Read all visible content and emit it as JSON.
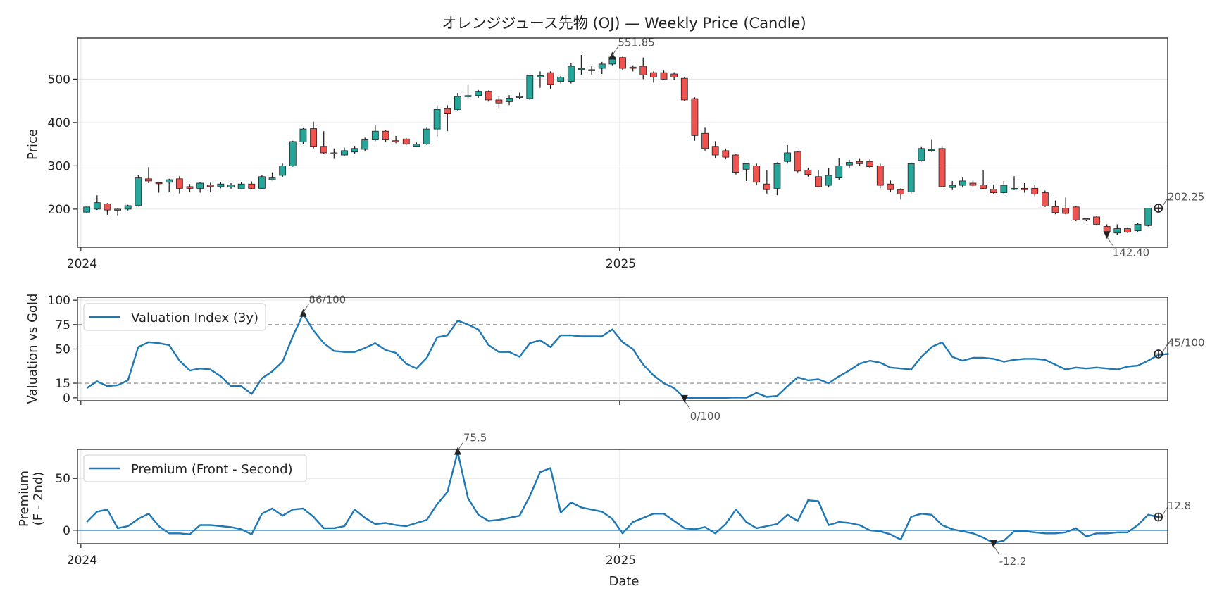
{
  "title": "オレンジジュース先物 (OJ) — Weekly Price (Candle)",
  "colors": {
    "up": "#26a69a",
    "down": "#ef5350",
    "line": "#1f77b4",
    "marker": "#222222",
    "grid": "#e6e6e6",
    "ref": "#999999"
  },
  "chart_data": [
    {
      "type": "candlestick",
      "ylabel": "Price",
      "ylim": [
        112,
        595
      ],
      "x_start": "2024-01-05",
      "x_step_days": 7,
      "x_ticks": [
        {
          "date": "2024-01-01",
          "label": "2024"
        },
        {
          "date": "2025-01-01",
          "label": "2025"
        }
      ],
      "y_ticks": [
        200,
        300,
        400,
        500
      ],
      "grid": true,
      "ohlc": [
        [
          193,
          205,
          190,
          208
        ],
        [
          200,
          215,
          198,
          232
        ],
        [
          212,
          198,
          187,
          214
        ],
        [
          198,
          200,
          186,
          201
        ],
        [
          200,
          208,
          197,
          210
        ],
        [
          208,
          272,
          206,
          278
        ],
        [
          270,
          265,
          260,
          297
        ],
        [
          261,
          259,
          238,
          262
        ],
        [
          262,
          268,
          239,
          270
        ],
        [
          270,
          248,
          236,
          276
        ],
        [
          252,
          248,
          240,
          258
        ],
        [
          248,
          260,
          238,
          262
        ],
        [
          256,
          252,
          239,
          261
        ],
        [
          252,
          258,
          248,
          262
        ],
        [
          251,
          256,
          246,
          260
        ],
        [
          247,
          258,
          246,
          262
        ],
        [
          258,
          248,
          246,
          264
        ],
        [
          248,
          275,
          246,
          278
        ],
        [
          268,
          272,
          266,
          285
        ],
        [
          278,
          300,
          274,
          305
        ],
        [
          300,
          356,
          298,
          358
        ],
        [
          355,
          385,
          350,
          387
        ],
        [
          386,
          345,
          340,
          402
        ],
        [
          345,
          330,
          328,
          380
        ],
        [
          328,
          330,
          316,
          340
        ],
        [
          325,
          335,
          322,
          342
        ],
        [
          332,
          340,
          328,
          346
        ],
        [
          338,
          360,
          335,
          365
        ],
        [
          360,
          380,
          357,
          394
        ],
        [
          380,
          360,
          355,
          383
        ],
        [
          358,
          356,
          352,
          369
        ],
        [
          362,
          350,
          347,
          364
        ],
        [
          345,
          350,
          344,
          354
        ],
        [
          350,
          385,
          348,
          388
        ],
        [
          385,
          430,
          368,
          440
        ],
        [
          432,
          420,
          380,
          440
        ],
        [
          430,
          460,
          428,
          468
        ],
        [
          460,
          462,
          456,
          488
        ],
        [
          462,
          472,
          457,
          475
        ],
        [
          472,
          452,
          448,
          474
        ],
        [
          452,
          445,
          434,
          460
        ],
        [
          448,
          456,
          440,
          463
        ],
        [
          458,
          460,
          455,
          469
        ],
        [
          455,
          508,
          452,
          510
        ],
        [
          505,
          508,
          480,
          518
        ],
        [
          515,
          488,
          478,
          518
        ],
        [
          495,
          505,
          490,
          508
        ],
        [
          495,
          530,
          490,
          538
        ],
        [
          522,
          525,
          510,
          556
        ],
        [
          522,
          520,
          510,
          530
        ],
        [
          525,
          535,
          512,
          540
        ],
        [
          535,
          551,
          532,
          558
        ],
        [
          550,
          525,
          520,
          552
        ],
        [
          528,
          525,
          518,
          532
        ],
        [
          530,
          510,
          500,
          550
        ],
        [
          515,
          505,
          492,
          518
        ],
        [
          515,
          500,
          498,
          520
        ],
        [
          512,
          505,
          498,
          516
        ],
        [
          502,
          452,
          450,
          505
        ],
        [
          455,
          370,
          358,
          458
        ],
        [
          375,
          340,
          335,
          388
        ],
        [
          345,
          325,
          318,
          357
        ],
        [
          335,
          320,
          315,
          340
        ],
        [
          325,
          285,
          280,
          328
        ],
        [
          292,
          305,
          265,
          307
        ],
        [
          300,
          262,
          256,
          305
        ],
        [
          258,
          245,
          236,
          290
        ],
        [
          248,
          305,
          232,
          308
        ],
        [
          310,
          330,
          305,
          348
        ],
        [
          332,
          288,
          285,
          335
        ],
        [
          290,
          280,
          275,
          296
        ],
        [
          275,
          252,
          250,
          290
        ],
        [
          255,
          278,
          250,
          295
        ],
        [
          272,
          300,
          268,
          318
        ],
        [
          302,
          308,
          295,
          314
        ],
        [
          310,
          305,
          300,
          316
        ],
        [
          310,
          298,
          295,
          315
        ],
        [
          300,
          255,
          248,
          305
        ],
        [
          258,
          245,
          240,
          266
        ],
        [
          245,
          235,
          222,
          248
        ],
        [
          240,
          305,
          236,
          308
        ],
        [
          312,
          340,
          310,
          345
        ],
        [
          336,
          338,
          332,
          360
        ],
        [
          340,
          252,
          250,
          345
        ],
        [
          250,
          255,
          244,
          265
        ],
        [
          255,
          265,
          250,
          273
        ],
        [
          260,
          255,
          250,
          266
        ],
        [
          256,
          248,
          246,
          290
        ],
        [
          246,
          238,
          236,
          257
        ],
        [
          238,
          255,
          234,
          265
        ],
        [
          246,
          248,
          244,
          276
        ],
        [
          248,
          245,
          238,
          260
        ],
        [
          248,
          235,
          230,
          256
        ],
        [
          238,
          207,
          205,
          243
        ],
        [
          206,
          192,
          188,
          220
        ],
        [
          202,
          190,
          188,
          227
        ],
        [
          205,
          175,
          172,
          207
        ],
        [
          178,
          175,
          172,
          178
        ],
        [
          182,
          165,
          162,
          185
        ],
        [
          160,
          147,
          143,
          165
        ],
        [
          145,
          155,
          140,
          165
        ],
        [
          155,
          147,
          145,
          158
        ],
        [
          150,
          165,
          148,
          168
        ],
        [
          162,
          202,
          160,
          203
        ],
        [
          203,
          202,
          195,
          206
        ]
      ],
      "annotations": [
        {
          "label": "551.85",
          "kind": "max",
          "index": 51,
          "value": 551.85
        },
        {
          "label": "142.40",
          "kind": "min",
          "index": 99,
          "value": 142.4
        },
        {
          "label": "202.25",
          "kind": "last",
          "index": 104,
          "value": 202.25
        }
      ]
    },
    {
      "type": "line",
      "ylabel": "Valuation vs Gold",
      "ylim": [
        -3,
        103
      ],
      "y_ticks": [
        0,
        15,
        50,
        75,
        100
      ],
      "reference_lines": [
        15,
        75
      ],
      "series": [
        {
          "name": "Valuation Index (3y)",
          "values": [
            10,
            17,
            12,
            13,
            18,
            52,
            57,
            56,
            54,
            38,
            28,
            30,
            29,
            22,
            12,
            12,
            4,
            20,
            27,
            37,
            63,
            86,
            69,
            56,
            48,
            47,
            47,
            51,
            56,
            49,
            46,
            35,
            30,
            41,
            62,
            64,
            79,
            75,
            70,
            54,
            47,
            47,
            42,
            56,
            59,
            52,
            64,
            64,
            63,
            63,
            63,
            70,
            57,
            50,
            34,
            23,
            15,
            10,
            0,
            0,
            0,
            0,
            0,
            0.4,
            0.2,
            5,
            1,
            2,
            12,
            21,
            18,
            19,
            15,
            22,
            28,
            35,
            38,
            36,
            31,
            30,
            29,
            42,
            52,
            57,
            42,
            38,
            41,
            41,
            40,
            37,
            39,
            40,
            40,
            39,
            34,
            29,
            31,
            30,
            31,
            30,
            29,
            32,
            33,
            38,
            44,
            45
          ]
        }
      ],
      "annotations": [
        {
          "label": "86/100",
          "kind": "max",
          "index": 21,
          "value": 86
        },
        {
          "label": "0/100",
          "kind": "min",
          "index": 58,
          "value": 0
        },
        {
          "label": "45/100",
          "kind": "last",
          "index": 104,
          "value": 45
        }
      ]
    },
    {
      "type": "line",
      "ylabel": "Premium\n(F - 2nd)",
      "xlabel": "Date",
      "ylim": [
        -13,
        78
      ],
      "x_ticks": [
        {
          "date": "2024-01-01",
          "label": "2024"
        },
        {
          "date": "2025-01-01",
          "label": "2025"
        }
      ],
      "y_ticks": [
        0,
        50
      ],
      "reference_lines": [
        0
      ],
      "series": [
        {
          "name": "Premium (Front - Second)",
          "values": [
            8,
            18,
            20,
            2,
            4,
            11,
            16,
            4,
            -3,
            -3,
            -4,
            5,
            5,
            4,
            3,
            1,
            -4,
            16,
            21,
            14,
            20,
            21,
            13,
            2,
            2,
            4,
            20,
            12,
            6,
            7,
            5,
            4,
            7,
            10,
            25,
            37,
            75.5,
            31,
            15,
            9,
            10,
            12,
            14,
            33,
            56,
            60,
            17,
            27,
            22,
            20,
            18,
            11,
            -3,
            8,
            12,
            16,
            16,
            9,
            2,
            1,
            3,
            -3,
            6,
            20,
            8,
            2,
            4,
            6,
            15,
            9,
            29,
            28,
            5,
            8,
            7,
            5,
            0,
            -1,
            -4,
            -9,
            13,
            16,
            15,
            5,
            1,
            -1,
            -3,
            -7,
            -12.2,
            -10,
            -1,
            -1,
            -2,
            -3,
            -3,
            -2,
            2,
            -6,
            -3,
            -3,
            -2,
            -2,
            5,
            15,
            12.8
          ]
        }
      ],
      "annotations": [
        {
          "label": "75.5",
          "kind": "max",
          "index": 36,
          "value": 75.5
        },
        {
          "label": "-12.2",
          "kind": "min",
          "index": 88,
          "value": -12.2
        },
        {
          "label": "12.8",
          "kind": "last",
          "index": 104,
          "value": 12.8
        }
      ]
    }
  ]
}
